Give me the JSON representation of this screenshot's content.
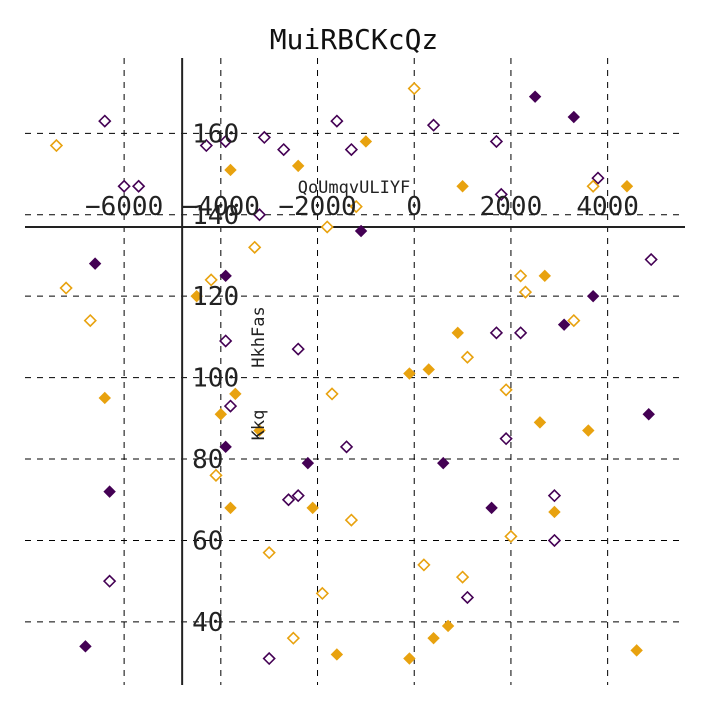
{
  "chart_data": {
    "type": "scatter",
    "title": "MuiRBCKcQz",
    "xlabel": "QoUmqvULIYF",
    "ylabel": "HkhFas",
    "ylabel2": "Kkq",
    "x_ticks": [
      "−6000",
      "−4000",
      "−2000",
      "0",
      "2000",
      "4000"
    ],
    "x_tick_values": [
      -6000,
      -4000,
      -2000,
      0,
      2000,
      4000
    ],
    "y_ticks": [
      "40",
      "60",
      "80",
      "100",
      "120",
      "140",
      "160"
    ],
    "y_tick_values": [
      40,
      60,
      80,
      100,
      120,
      140,
      160
    ],
    "xlim": [
      -8050,
      5600
    ],
    "ylim": [
      24.5,
      178.5
    ],
    "grid": true,
    "grid_style": "dashed",
    "legend": "none",
    "colors": {
      "purple": "#440154",
      "orange": "#e8a20f",
      "axis": "#222222",
      "grid": "#000000"
    },
    "series": [
      {
        "color": "purple",
        "marker": "diamond",
        "filled": true,
        "x": [
          2500,
          3300,
          -1100,
          -6600,
          -3900,
          3700,
          3100,
          -2200,
          -3900,
          4850,
          600,
          1600,
          -6300,
          -6800
        ],
        "y": [
          169,
          164,
          136,
          128,
          125,
          120,
          113,
          79,
          83,
          91,
          79,
          68,
          72,
          34
        ]
      },
      {
        "color": "orange",
        "marker": "diamond",
        "filled": true,
        "x": [
          -1000,
          -2400,
          1000,
          4400,
          -3800,
          -4500,
          2700,
          900,
          300,
          -3700,
          -6400,
          -100,
          -3200,
          -4000,
          3600,
          2600,
          2900,
          -2100,
          -3800,
          700,
          400,
          -1600,
          -100,
          4600
        ],
        "y": [
          158,
          152,
          147,
          147,
          151,
          120,
          125,
          111,
          102,
          96,
          95,
          101,
          87,
          91,
          87,
          89,
          67,
          68,
          68,
          39,
          36,
          32,
          31,
          33
        ]
      },
      {
        "color": "purple",
        "marker": "diamond",
        "filled": false,
        "x": [
          -6400,
          -6000,
          -5700,
          -4300,
          -3100,
          -2700,
          -3200,
          -3900,
          -3800,
          -2400,
          -1400,
          400,
          1700,
          1800,
          -3900,
          -2600,
          -2400,
          -1600,
          2200,
          1900,
          3800,
          4900,
          1700,
          2900,
          2900,
          1100,
          -3000,
          -6300,
          -1300
        ],
        "y": [
          163,
          147,
          147,
          157,
          159,
          156,
          140,
          109,
          93,
          107,
          83,
          162,
          158,
          145,
          158,
          70,
          71,
          163,
          111,
          85,
          149,
          129,
          111,
          71,
          60,
          46,
          31,
          50,
          156
        ]
      },
      {
        "color": "orange",
        "marker": "diamond",
        "filled": false,
        "x": [
          -7400,
          -7200,
          -6700,
          -4200,
          -3300,
          -1900,
          0,
          2200,
          2300,
          3300,
          3700,
          -1300,
          -4100,
          -3000,
          -2500,
          -1800,
          -1700,
          1900,
          2000,
          1100,
          1000,
          200,
          -1200
        ],
        "y": [
          157,
          122,
          114,
          124,
          132,
          47,
          171,
          125,
          121,
          114,
          147,
          65,
          76,
          57,
          36,
          137,
          96,
          97,
          61,
          105,
          51,
          54,
          142
        ]
      }
    ]
  }
}
